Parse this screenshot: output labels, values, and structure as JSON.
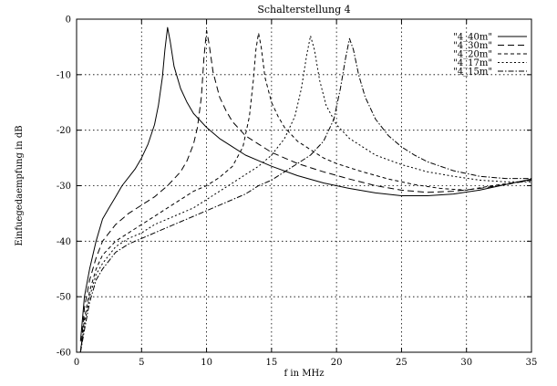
{
  "chart_data": {
    "type": "line",
    "title": "Schalterstellung 4",
    "xlabel": "f in MHz",
    "ylabel": "Einfuegedaempfung in dB",
    "xlim": [
      0,
      35
    ],
    "ylim": [
      -60,
      0
    ],
    "xticks": [
      0,
      5,
      10,
      15,
      20,
      25,
      30,
      35
    ],
    "yticks": [
      0,
      -10,
      -20,
      -30,
      -40,
      -50,
      -60
    ],
    "grid": true,
    "legend_position": "top-right",
    "series": [
      {
        "name": "\"4_40m\"",
        "dash": "solid",
        "x": [
          0.3,
          0.6,
          1,
          1.5,
          2,
          2.5,
          3,
          3.5,
          4,
          4.5,
          5,
          5.5,
          6,
          6.3,
          6.6,
          6.8,
          7,
          7.2,
          7.5,
          8,
          8.5,
          9,
          10,
          11,
          12,
          13,
          14,
          15,
          17,
          19,
          21,
          23,
          25,
          27,
          29,
          31,
          33,
          35
        ],
        "y": [
          -58,
          -50,
          -45,
          -40,
          -36,
          -34,
          -32,
          -30,
          -28.5,
          -27,
          -25,
          -22.5,
          -19,
          -15.5,
          -10.5,
          -5.5,
          -1.5,
          -4,
          -8.5,
          -12.5,
          -15,
          -17,
          -19.5,
          -21.5,
          -23,
          -24.5,
          -25.5,
          -26.5,
          -28.2,
          -29.5,
          -30.5,
          -31.3,
          -31.8,
          -31.8,
          -31.5,
          -30.8,
          -29.8,
          -28.8
        ]
      },
      {
        "name": "\"4_30m\"",
        "dash": "long-dash",
        "x": [
          0.3,
          0.6,
          1,
          1.5,
          2,
          3,
          4,
          5,
          6,
          7,
          8,
          8.5,
          9,
          9.3,
          9.6,
          9.8,
          10,
          10.2,
          10.5,
          11,
          11.5,
          12,
          13,
          14,
          15,
          17,
          19,
          21,
          23,
          25,
          27,
          29,
          31,
          33,
          35
        ],
        "y": [
          -60,
          -52,
          -47,
          -43,
          -40,
          -37,
          -35,
          -33.5,
          -32,
          -30,
          -27.5,
          -25.5,
          -22.5,
          -19.5,
          -14,
          -7,
          -2,
          -4.5,
          -9.5,
          -14,
          -16.5,
          -18.5,
          -21,
          -22.5,
          -24,
          -26,
          -27.5,
          -28.8,
          -30,
          -30.8,
          -31.2,
          -31,
          -30.5,
          -29.8,
          -29
        ]
      },
      {
        "name": "\"4_20m\"",
        "dash": "dash",
        "x": [
          0.3,
          0.6,
          1,
          1.5,
          2,
          3,
          4,
          5,
          6,
          7,
          8,
          9,
          10,
          11,
          12,
          12.8,
          13.3,
          13.6,
          13.8,
          14,
          14.2,
          14.5,
          15,
          15.5,
          16,
          17,
          18,
          19,
          20,
          22,
          24,
          26,
          28,
          30,
          32,
          35
        ],
        "y": [
          -60,
          -54,
          -49,
          -45,
          -42.5,
          -40,
          -38.5,
          -37,
          -35.5,
          -34,
          -32.5,
          -31,
          -30,
          -28.5,
          -26.5,
          -23,
          -17.5,
          -11,
          -5.5,
          -2.5,
          -5,
          -10.5,
          -15,
          -17.5,
          -19.5,
          -22,
          -23.5,
          -25,
          -26,
          -27.5,
          -28.8,
          -29.8,
          -30.5,
          -30.8,
          -30,
          -29
        ]
      },
      {
        "name": "\"4_17m\"",
        "dash": "short-dash",
        "x": [
          0.3,
          0.6,
          1,
          1.5,
          2,
          3,
          4,
          5,
          6,
          7,
          8,
          9,
          10,
          11,
          12,
          13,
          14,
          15,
          16,
          16.8,
          17.3,
          17.7,
          18,
          18.3,
          18.7,
          19.2,
          20,
          21,
          22,
          23,
          25,
          27,
          29,
          31,
          33,
          35
        ],
        "y": [
          -60,
          -55,
          -50,
          -46,
          -44,
          -41,
          -39.5,
          -38.5,
          -37,
          -36,
          -35,
          -34,
          -32.5,
          -31,
          -29.5,
          -28,
          -26.5,
          -24.5,
          -21.5,
          -17.5,
          -12.5,
          -6.5,
          -3,
          -5.5,
          -11,
          -15.5,
          -19,
          -21.5,
          -23,
          -24.5,
          -26.2,
          -27.5,
          -28.3,
          -29,
          -29.3,
          -29.3
        ]
      },
      {
        "name": "\"4_15m\"",
        "dash": "dash-dot",
        "x": [
          0.3,
          0.6,
          1,
          1.5,
          2,
          3,
          4,
          5,
          6,
          7,
          8,
          9,
          10,
          11,
          12,
          13,
          14,
          15,
          16,
          17,
          18,
          19,
          19.8,
          20.3,
          20.7,
          21,
          21.3,
          21.7,
          22.2,
          23,
          24,
          25,
          26,
          27,
          29,
          31,
          33,
          35
        ],
        "y": [
          -60,
          -56,
          -51,
          -47,
          -45,
          -42,
          -40.5,
          -39.5,
          -38.5,
          -37.5,
          -36.5,
          -35.5,
          -34.5,
          -33.5,
          -32.5,
          -31.5,
          -30,
          -29,
          -27.5,
          -26,
          -24.5,
          -22,
          -18,
          -12.5,
          -7,
          -3.5,
          -5.5,
          -10,
          -14,
          -18,
          -21,
          -23,
          -24.5,
          -25.7,
          -27.3,
          -28.3,
          -28.7,
          -28.7
        ]
      }
    ]
  }
}
